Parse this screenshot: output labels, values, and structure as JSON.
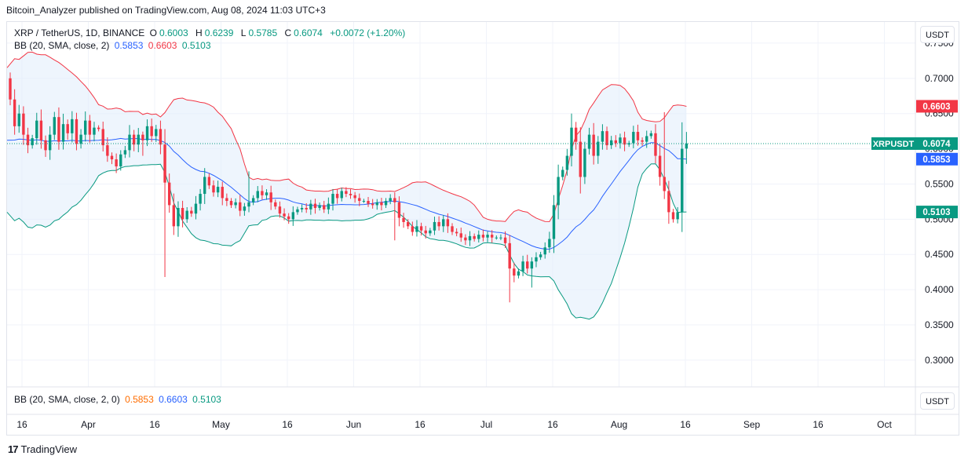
{
  "publisher_line": "Bitcoin_Analyzer published on TradingView.com, Aug 08, 2024 11:03 UTC+3",
  "legend": {
    "symbol": "XRP / TetherUS, 1D, BINANCE",
    "o_label": "O",
    "o": "0.6003",
    "h_label": "H",
    "h": "0.6239",
    "l_label": "L",
    "l": "0.5785",
    "c_label": "C",
    "c": "0.6074",
    "change": "+0.0072 (+1.20%)",
    "bb_label": "BB (20, SMA, close, 2)",
    "bb_basis": "0.5853",
    "bb_upper": "0.6603",
    "bb_lower": "0.5103"
  },
  "lower_legend": {
    "label": "BB (20, SMA, close, 2, 0)",
    "v1": "0.5853",
    "v2": "0.6603",
    "v3": "0.5103"
  },
  "currency_button": "USDT",
  "lower_currency_button": "USDT",
  "footer_brand": "TradingView",
  "footer_mark": "17",
  "colors": {
    "up": "#089981",
    "down": "#f23645",
    "basis": "#2962ff",
    "upper": "#f23645",
    "lower": "#089981",
    "band_fill": "#e3eefb",
    "last_price": "#089981"
  },
  "chart_data": {
    "type": "candlestick",
    "symbol": "XRPUSDT",
    "y_axis": {
      "ticks": [
        "0.7500",
        "0.7000",
        "0.6500",
        "0.6000",
        "0.5500",
        "0.5000",
        "0.4500",
        "0.4000",
        "0.3500",
        "0.3000"
      ],
      "ylim": [
        0.262,
        0.78
      ]
    },
    "x_axis": {
      "ticks": [
        "16",
        "Apr",
        "16",
        "May",
        "16",
        "Jun",
        "16",
        "Jul",
        "16",
        "Aug",
        "16",
        "Sep",
        "16",
        "Oct"
      ]
    },
    "price_labels": [
      {
        "label": "",
        "value": "0.6603",
        "y": 0.6603,
        "color": "#f23645"
      },
      {
        "label": "XRPUSDT",
        "value": "0.6074",
        "y": 0.6074,
        "color": "#089981"
      },
      {
        "label": "",
        "value": "0.5853",
        "y": 0.5853,
        "color": "#2962ff"
      },
      {
        "label": "",
        "value": "0.5103",
        "y": 0.5103,
        "color": "#089981"
      }
    ],
    "last_price": 0.6074,
    "closes": [
      0.67,
      0.632,
      0.65,
      0.62,
      0.605,
      0.615,
      0.64,
      0.612,
      0.598,
      0.62,
      0.645,
      0.61,
      0.635,
      0.622,
      0.642,
      0.607,
      0.62,
      0.64,
      0.62,
      0.63,
      0.628,
      0.605,
      0.59,
      0.585,
      0.575,
      0.592,
      0.598,
      0.62,
      0.606,
      0.62,
      0.612,
      0.632,
      0.618,
      0.628,
      0.606,
      0.552,
      0.52,
      0.49,
      0.516,
      0.5,
      0.512,
      0.508,
      0.522,
      0.536,
      0.56,
      0.548,
      0.538,
      0.546,
      0.53,
      0.526,
      0.52,
      0.524,
      0.512,
      0.518,
      0.524,
      0.53,
      0.54,
      0.534,
      0.538,
      0.524,
      0.518,
      0.508,
      0.504,
      0.5,
      0.51,
      0.514,
      0.516,
      0.514,
      0.522,
      0.516,
      0.52,
      0.514,
      0.522,
      0.536,
      0.53,
      0.54,
      0.536,
      0.534,
      0.53,
      0.526,
      0.526,
      0.522,
      0.52,
      0.524,
      0.52,
      0.526,
      0.53,
      0.524,
      0.502,
      0.496,
      0.49,
      0.482,
      0.49,
      0.484,
      0.48,
      0.484,
      0.496,
      0.49,
      0.5,
      0.49,
      0.482,
      0.48,
      0.474,
      0.47,
      0.476,
      0.472,
      0.478,
      0.474,
      0.478,
      0.474,
      0.474,
      0.474,
      0.466,
      0.43,
      0.42,
      0.426,
      0.44,
      0.43,
      0.44,
      0.446,
      0.45,
      0.46,
      0.472,
      0.52,
      0.56,
      0.57,
      0.59,
      0.63,
      0.61,
      0.56,
      0.6,
      0.62,
      0.59,
      0.61,
      0.625,
      0.605,
      0.612,
      0.608,
      0.616,
      0.606,
      0.608,
      0.624,
      0.612,
      0.61,
      0.618,
      0.622,
      0.59,
      0.56,
      0.54,
      0.51,
      0.5,
      0.51,
      0.6,
      0.6074
    ],
    "bb_basis": {
      "first": 0.612,
      "last": 0.5853
    },
    "bb_upper": {
      "first": 0.715,
      "last": 0.6603
    },
    "bb_lower": {
      "first": 0.51,
      "last": 0.5103
    }
  }
}
